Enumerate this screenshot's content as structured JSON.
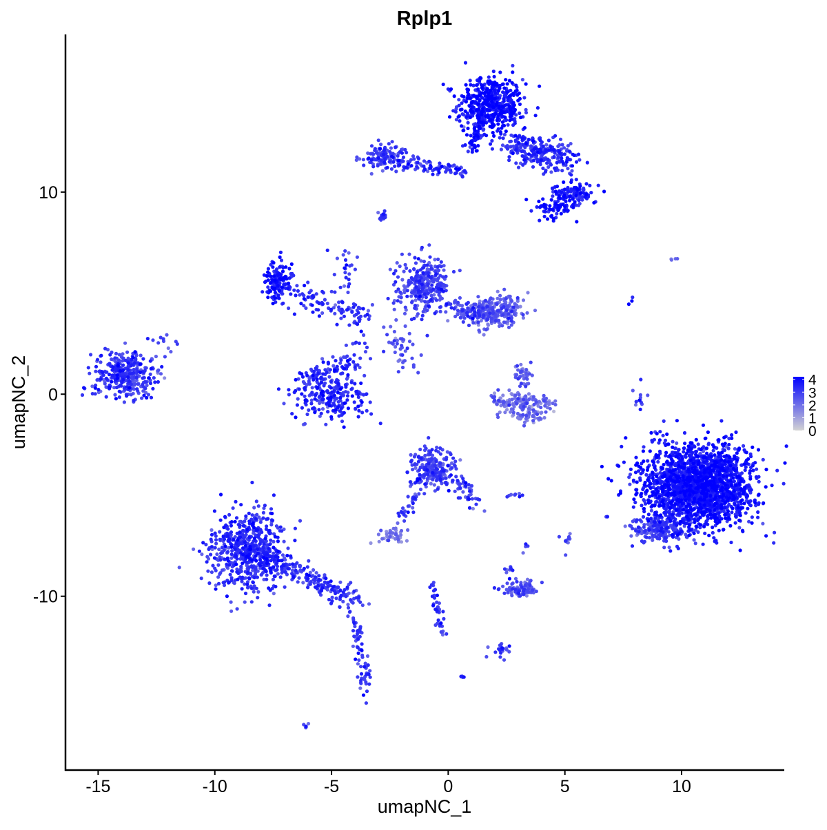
{
  "chart_data": {
    "type": "scatter",
    "title": "Rplp1",
    "xlabel": "umapNC_1",
    "ylabel": "umapNC_2",
    "xlim": [
      -16.4,
      14.4
    ],
    "ylim": [
      -18.6,
      17.8
    ],
    "xticks": [
      -15,
      -10,
      -5,
      0,
      5,
      10
    ],
    "yticks": [
      -10,
      0,
      10
    ],
    "grid": false,
    "legend": {
      "placement": "right",
      "type": "colorbar",
      "ticks": [
        0,
        1,
        2,
        3,
        4
      ],
      "range": [
        0,
        4.2
      ],
      "low_color": "#d3d3d3",
      "high_color": "#0000ff"
    },
    "clusters": [
      {
        "center": [
          1.8,
          14.3
        ],
        "spread": [
          0.7,
          0.7
        ],
        "n": 500,
        "expr": 3.8
      },
      {
        "center": [
          2.7,
          12.4
        ],
        "to": [
          5.2,
          11.6
        ],
        "spread": [
          0.5,
          0.4
        ],
        "n": 250,
        "expr": 3.2
      },
      {
        "center": [
          5.4,
          9.9
        ],
        "spread": [
          0.4,
          0.3
        ],
        "n": 120,
        "expr": 3.6
      },
      {
        "center": [
          4.5,
          9.2
        ],
        "spread": [
          0.4,
          0.3
        ],
        "n": 70,
        "expr": 3.8
      },
      {
        "center": [
          -2.7,
          11.7
        ],
        "spread": [
          0.5,
          0.3
        ],
        "n": 120,
        "expr": 3.0
      },
      {
        "center": [
          -2.0,
          11.4
        ],
        "to": [
          0.8,
          11.0
        ],
        "spread": [
          0.2,
          0.15
        ],
        "n": 80,
        "expr": 3.2
      },
      {
        "center": [
          1.0,
          12.0
        ],
        "to": [
          1.4,
          13.6
        ],
        "spread": [
          0.15,
          0.2
        ],
        "n": 60,
        "expr": 3.6
      },
      {
        "center": [
          -2.8,
          8.8
        ],
        "spread": [
          0.1,
          0.1
        ],
        "n": 15,
        "expr": 3.0
      },
      {
        "center": [
          -13.8,
          1.0
        ],
        "spread": [
          0.7,
          0.6
        ],
        "n": 350,
        "expr": 3.0
      },
      {
        "center": [
          -12.0,
          2.6
        ],
        "spread": [
          0.3,
          0.2
        ],
        "n": 10,
        "expr": 3.0
      },
      {
        "center": [
          -7.3,
          5.5
        ],
        "spread": [
          0.3,
          0.5
        ],
        "n": 150,
        "expr": 3.6
      },
      {
        "center": [
          -6.8,
          5.0
        ],
        "to": [
          -3.5,
          3.7
        ],
        "spread": [
          0.3,
          0.3
        ],
        "n": 90,
        "expr": 3.2
      },
      {
        "center": [
          -4.5,
          7.3
        ],
        "to": [
          -3.8,
          2.0
        ],
        "spread": [
          0.2,
          0.2
        ],
        "n": 40,
        "expr": 3.0
      },
      {
        "center": [
          -2.5,
          3.0
        ],
        "to": [
          -1.5,
          1.3
        ],
        "spread": [
          0.3,
          0.3
        ],
        "n": 40,
        "expr": 2.6
      },
      {
        "center": [
          -1.0,
          5.3
        ],
        "spread": [
          0.5,
          0.7
        ],
        "n": 300,
        "expr": 2.8
      },
      {
        "center": [
          0.3,
          4.2
        ],
        "to": [
          1.5,
          4.2
        ],
        "spread": [
          0.4,
          0.3
        ],
        "n": 120,
        "expr": 2.6
      },
      {
        "center": [
          2.2,
          4.0
        ],
        "spread": [
          0.5,
          0.4
        ],
        "n": 200,
        "expr": 2.3
      },
      {
        "center": [
          -5.0,
          -0.2
        ],
        "spread": [
          0.9,
          0.5
        ],
        "n": 200,
        "expr": 3.3
      },
      {
        "center": [
          -6.2,
          0.8
        ],
        "to": [
          -4.0,
          1.5
        ],
        "spread": [
          0.3,
          0.3
        ],
        "n": 100,
        "expr": 3.3
      },
      {
        "center": [
          2.0,
          -0.3
        ],
        "to": [
          4.5,
          -0.5
        ],
        "spread": [
          0.2,
          0.2
        ],
        "n": 120,
        "expr": 2.0
      },
      {
        "center": [
          3.3,
          -1.0
        ],
        "spread": [
          0.5,
          0.2
        ],
        "n": 60,
        "expr": 1.9
      },
      {
        "center": [
          3.2,
          0.8
        ],
        "spread": [
          0.2,
          0.3
        ],
        "n": 40,
        "expr": 2.4
      },
      {
        "center": [
          10.7,
          -4.5
        ],
        "spread": [
          1.2,
          1.0
        ],
        "n": 2000,
        "expr": 3.7
      },
      {
        "center": [
          9.0,
          -6.7
        ],
        "spread": [
          0.6,
          0.3
        ],
        "n": 200,
        "expr": 2.8
      },
      {
        "center": [
          8.3,
          -0.2
        ],
        "spread": [
          0.15,
          0.4
        ],
        "n": 12,
        "expr": 3.0
      },
      {
        "center": [
          9.7,
          6.7
        ],
        "spread": [
          0.2,
          0.05
        ],
        "n": 4,
        "expr": 2.2
      },
      {
        "center": [
          7.9,
          4.7
        ],
        "spread": [
          0.1,
          0.2
        ],
        "n": 3,
        "expr": 3.5
      },
      {
        "center": [
          -0.7,
          -3.7
        ],
        "spread": [
          0.5,
          0.5
        ],
        "n": 220,
        "expr": 2.8
      },
      {
        "center": [
          0.4,
          -4.2
        ],
        "to": [
          1.2,
          -5.5
        ],
        "spread": [
          0.2,
          0.2
        ],
        "n": 40,
        "expr": 3.0
      },
      {
        "center": [
          -1.5,
          -5.0
        ],
        "to": [
          -2.0,
          -6.3
        ],
        "spread": [
          0.15,
          0.15
        ],
        "n": 25,
        "expr": 2.8
      },
      {
        "center": [
          -2.5,
          -7.0
        ],
        "spread": [
          0.35,
          0.25
        ],
        "n": 40,
        "expr": 1.8
      },
      {
        "center": [
          -8.6,
          -7.8
        ],
        "spread": [
          0.8,
          1.0
        ],
        "n": 600,
        "expr": 3.2
      },
      {
        "center": [
          -7.5,
          -8.2
        ],
        "to": [
          -4.0,
          -10.3
        ],
        "spread": [
          0.25,
          0.25
        ],
        "n": 180,
        "expr": 3.1
      },
      {
        "center": [
          -4.0,
          -11.0
        ],
        "to": [
          -3.5,
          -15.0
        ],
        "spread": [
          0.12,
          0.2
        ],
        "n": 70,
        "expr": 3.1
      },
      {
        "center": [
          -6.1,
          -16.4
        ],
        "spread": [
          0.05,
          0.05
        ],
        "n": 5,
        "expr": 2.5
      },
      {
        "center": [
          3.1,
          -9.6
        ],
        "spread": [
          0.4,
          0.2
        ],
        "n": 80,
        "expr": 2.6
      },
      {
        "center": [
          2.6,
          -8.8
        ],
        "spread": [
          0.1,
          0.2
        ],
        "n": 8,
        "expr": 3.0
      },
      {
        "center": [
          -0.7,
          -9.3
        ],
        "to": [
          -0.2,
          -12.0
        ],
        "spread": [
          0.1,
          0.1
        ],
        "n": 40,
        "expr": 3.0
      },
      {
        "center": [
          2.3,
          -12.6
        ],
        "spread": [
          0.25,
          0.2
        ],
        "n": 20,
        "expr": 3.0
      },
      {
        "center": [
          0.6,
          -14.0
        ],
        "spread": [
          0.05,
          0.05
        ],
        "n": 5,
        "expr": 3.0
      },
      {
        "center": [
          2.8,
          -5.0
        ],
        "spread": [
          0.3,
          0.05
        ],
        "n": 8,
        "expr": 3.0
      },
      {
        "center": [
          5.1,
          -7.5
        ],
        "spread": [
          0.1,
          0.3
        ],
        "n": 10,
        "expr": 2.6
      },
      {
        "center": [
          3.3,
          -7.5
        ],
        "spread": [
          0.1,
          0.2
        ],
        "n": 4,
        "expr": 3.0
      }
    ]
  }
}
